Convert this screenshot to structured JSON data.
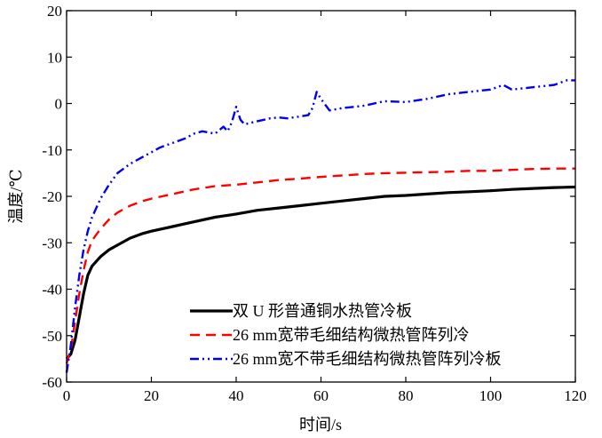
{
  "chart_data": {
    "type": "line",
    "xlabel": "时间/s",
    "ylabel": "温度/℃",
    "xlim": [
      0,
      120
    ],
    "ylim": [
      -60,
      20
    ],
    "xticks": [
      0,
      20,
      40,
      60,
      80,
      100,
      120
    ],
    "yticks": [
      -60,
      -50,
      -40,
      -30,
      -20,
      -10,
      0,
      10,
      20
    ],
    "grid": false,
    "legend_position": "bottom-right",
    "series": [
      {
        "name": "双 U 形普通铜水热管冷板",
        "color": "#000000",
        "style": "solid",
        "x": [
          0,
          1,
          2,
          3,
          4,
          5,
          6,
          8,
          10,
          12,
          15,
          18,
          20,
          25,
          30,
          35,
          40,
          45,
          50,
          55,
          60,
          65,
          70,
          75,
          80,
          85,
          90,
          95,
          100,
          105,
          110,
          115,
          120
        ],
        "y": [
          -55,
          -54,
          -51,
          -46,
          -41,
          -37,
          -35,
          -33,
          -31.5,
          -30.5,
          -29,
          -28,
          -27.5,
          -26.5,
          -25.5,
          -24.5,
          -23.8,
          -23,
          -22.5,
          -22,
          -21.5,
          -21,
          -20.5,
          -20,
          -19.8,
          -19.5,
          -19.2,
          -19,
          -18.8,
          -18.5,
          -18.3,
          -18.1,
          -18
        ]
      },
      {
        "name": "26  mm宽带毛细结构微热管阵列冷",
        "color": "#ff0000",
        "style": "dashed",
        "x": [
          0,
          1,
          2,
          3,
          4,
          5,
          6,
          8,
          10,
          12,
          15,
          18,
          20,
          25,
          30,
          35,
          40,
          45,
          50,
          55,
          60,
          65,
          70,
          75,
          80,
          85,
          90,
          95,
          100,
          105,
          110,
          115,
          120
        ],
        "y": [
          -56,
          -53,
          -47,
          -41,
          -36,
          -32,
          -29.5,
          -27,
          -25,
          -23.5,
          -22,
          -21,
          -20.5,
          -19.5,
          -18.5,
          -17.8,
          -17.5,
          -17,
          -16.5,
          -16.2,
          -15.8,
          -15.5,
          -15.2,
          -15,
          -14.9,
          -14.8,
          -14.7,
          -14.5,
          -14.5,
          -14.3,
          -14.1,
          -14,
          -14
        ]
      },
      {
        "name": "26 mm宽不带毛细结构微热管阵列冷板",
        "color": "#0000ee",
        "style": "dashdotdot",
        "x": [
          0,
          1,
          2,
          3,
          4,
          5,
          6,
          8,
          10,
          12,
          15,
          18,
          20,
          22,
          25,
          28,
          30,
          32,
          35,
          37,
          38,
          39,
          40,
          41,
          42,
          45,
          48,
          50,
          52,
          55,
          57,
          58,
          59,
          60,
          62,
          65,
          70,
          75,
          80,
          85,
          90,
          95,
          100,
          103,
          105,
          110,
          115,
          118,
          120
        ],
        "y": [
          -58,
          -52,
          -44,
          -37,
          -31.5,
          -27.5,
          -24.5,
          -20.5,
          -17.5,
          -15,
          -13,
          -11.5,
          -10.5,
          -9.5,
          -8.5,
          -7.5,
          -6.5,
          -6,
          -6.5,
          -5,
          -6,
          -4,
          -0.7,
          -3.5,
          -4.5,
          -3.8,
          -3.2,
          -3,
          -3.2,
          -2.8,
          -2.5,
          -1,
          2.5,
          1,
          -1.5,
          -1,
          -0.5,
          0.5,
          0.3,
          1,
          2,
          2.5,
          3,
          4,
          3,
          3.5,
          4,
          5,
          5
        ]
      }
    ]
  }
}
